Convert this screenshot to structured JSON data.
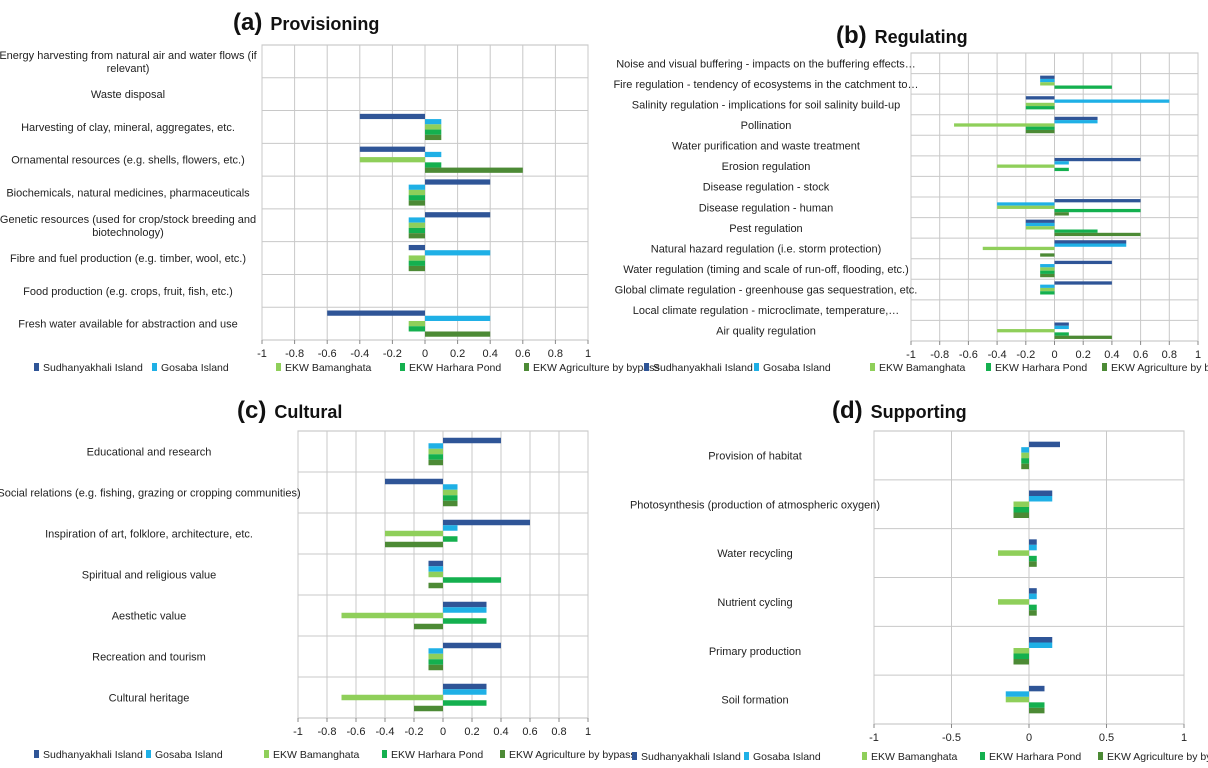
{
  "chart_data": [
    {
      "type": "bar",
      "orientation": "horizontal",
      "panel": "(a)",
      "title": "Provisioning",
      "categories": [
        "Energy harvesting from natural air and water flows (if relevant)",
        "Waste disposal",
        "Harvesting of clay, mineral, aggregates, etc.",
        "Ornamental resources (e.g. shells, flowers, etc.)",
        "Biochemicals, natural medicines, pharmaceuticals",
        "Genetic resources (used for crop/stock breeding and biotechnology)",
        "Fibre and fuel production (e.g. timber, wool, etc.)",
        "Food production (e.g. crops, fruit, fish, etc.)",
        "Fresh water available for abstraction and use"
      ],
      "series": [
        {
          "name": "Sudhanyakhali Island",
          "values": [
            0,
            0,
            -0.4,
            -0.4,
            0.4,
            0.4,
            -0.1,
            0,
            -0.6
          ]
        },
        {
          "name": "Gosaba Island",
          "values": [
            0,
            0,
            0.1,
            0.1,
            -0.1,
            -0.1,
            0.4,
            0,
            0.4
          ]
        },
        {
          "name": "EKW Bamanghata",
          "values": [
            0,
            0,
            0.1,
            -0.4,
            -0.1,
            -0.1,
            -0.1,
            0,
            -0.1
          ]
        },
        {
          "name": "EKW Harhara Pond",
          "values": [
            0,
            0,
            0.1,
            0.1,
            -0.1,
            -0.1,
            -0.1,
            0,
            -0.1
          ]
        },
        {
          "name": "EKW Agriculture by bypass",
          "values": [
            0,
            0,
            0.1,
            0.6,
            -0.1,
            -0.1,
            -0.1,
            0,
            0.4
          ]
        }
      ],
      "xlim": [
        -1,
        1
      ],
      "xticks": [
        "-1",
        "-0.8",
        "-0.6",
        "-0.4",
        "-0.2",
        "0",
        "0.2",
        "0.4",
        "0.6",
        "0.8",
        "1"
      ],
      "grid": true,
      "legend": "bottom"
    },
    {
      "type": "bar",
      "orientation": "horizontal",
      "panel": "(b)",
      "title": "Regulating",
      "categories": [
        "Noise and visual buffering - impacts on the buffering effects…",
        "Fire regulation - tendency of ecosystems in the catchment to…",
        "Salinity regulation - implications for soil salinity build-up",
        "Pollination",
        "Water purification and waste treatment",
        "Erosion regulation",
        "Disease regulation - stock",
        "Disease regulation - human",
        "Pest regulation",
        "Natural hazard regulation (i.e. storm protection)",
        "Water regulation (timing and scale of run-off, flooding, etc.)",
        "Global climate regulation - greenhouse gas sequestration, etc.",
        "Local climate regulation - microclimate, temperature,…",
        "Air quality regulation"
      ],
      "series": [
        {
          "name": "Sudhanyakhali Island",
          "values": [
            0,
            -0.1,
            -0.2,
            0.3,
            0,
            0.6,
            0,
            0.6,
            -0.2,
            0.5,
            0.4,
            0.4,
            0,
            0.1
          ]
        },
        {
          "name": "Gosaba Island",
          "values": [
            0,
            -0.1,
            0.8,
            0.3,
            0,
            0.1,
            0,
            -0.4,
            -0.2,
            0.5,
            -0.1,
            -0.1,
            0,
            0.1
          ]
        },
        {
          "name": "EKW Bamanghata",
          "values": [
            0,
            -0.1,
            -0.2,
            -0.7,
            0,
            -0.4,
            0,
            -0.4,
            -0.2,
            -0.5,
            -0.1,
            -0.1,
            0,
            -0.4
          ]
        },
        {
          "name": "EKW Harhara Pond",
          "values": [
            0,
            0.4,
            -0.2,
            -0.2,
            0,
            0.1,
            0,
            0.6,
            0.3,
            0,
            -0.1,
            -0.1,
            0,
            0.1
          ]
        },
        {
          "name": "EKW Agriculture by bypass",
          "values": [
            0,
            0,
            0,
            -0.2,
            0,
            0,
            0,
            0.1,
            0.6,
            -0.1,
            -0.1,
            0,
            0,
            0.4
          ]
        }
      ],
      "xlim": [
        -1,
        1
      ],
      "xticks": [
        "-1",
        "-0.8",
        "-0.6",
        "-0.4",
        "-0.2",
        "0",
        "0.2",
        "0.4",
        "0.6",
        "0.8",
        "1"
      ],
      "grid": true,
      "legend": "bottom"
    },
    {
      "type": "bar",
      "orientation": "horizontal",
      "panel": "(c)",
      "title": "Cultural",
      "categories": [
        "Educational and research",
        "Social relations (e.g. fishing, grazing or cropping communities)",
        "Inspiration of art, folklore, architecture, etc.",
        "Spiritual and religious value",
        "Aesthetic value",
        "Recreation and tourism",
        "Cultural heritage"
      ],
      "series": [
        {
          "name": "Sudhanyakhali Island",
          "values": [
            0.4,
            -0.4,
            0.6,
            -0.1,
            0.3,
            0.4,
            0.3
          ]
        },
        {
          "name": "Gosaba Island",
          "values": [
            -0.1,
            0.1,
            0.1,
            -0.1,
            0.3,
            -0.1,
            0.3
          ]
        },
        {
          "name": "EKW Bamanghata",
          "values": [
            -0.1,
            0.1,
            -0.4,
            -0.1,
            -0.7,
            -0.1,
            -0.7
          ]
        },
        {
          "name": "EKW Harhara Pond",
          "values": [
            -0.1,
            0.1,
            0.1,
            0.4,
            0.3,
            -0.1,
            0.3
          ]
        },
        {
          "name": "EKW Agriculture by bypass",
          "values": [
            -0.1,
            0.1,
            -0.4,
            -0.1,
            -0.2,
            -0.1,
            -0.2
          ]
        }
      ],
      "xlim": [
        -1,
        1
      ],
      "xticks": [
        "-1",
        "-0.8",
        "-0.6",
        "-0.4",
        "-0.2",
        "0",
        "0.2",
        "0.4",
        "0.6",
        "0.8",
        "1"
      ],
      "grid": true,
      "legend": "bottom"
    },
    {
      "type": "bar",
      "orientation": "horizontal",
      "panel": "(d)",
      "title": "Supporting",
      "categories": [
        "Provision of habitat",
        "Photosynthesis (production of atmospheric oxygen)",
        "Water recycling",
        "Nutrient cycling",
        "Primary production",
        "Soil formation"
      ],
      "series": [
        {
          "name": "Sudhanyakhali Island",
          "values": [
            0.2,
            0.15,
            0.05,
            0.05,
            0.15,
            0.1
          ]
        },
        {
          "name": "Gosaba Island",
          "values": [
            -0.05,
            0.15,
            0.05,
            0.05,
            0.15,
            -0.15
          ]
        },
        {
          "name": "EKW Bamanghata",
          "values": [
            -0.05,
            -0.1,
            -0.2,
            -0.2,
            -0.1,
            -0.15
          ]
        },
        {
          "name": "EKW Harhara Pond",
          "values": [
            -0.05,
            -0.1,
            0.05,
            0.05,
            -0.1,
            0.1
          ]
        },
        {
          "name": "EKW Agriculture by bypass",
          "values": [
            -0.05,
            -0.1,
            0.05,
            0.05,
            -0.1,
            0.1
          ]
        }
      ],
      "xlim": [
        -1,
        1
      ],
      "xticks": [
        "-1",
        "-0.5",
        "0",
        "0.5",
        "1"
      ],
      "grid": true,
      "legend": "bottom"
    }
  ],
  "series_colors": [
    "#2f5597",
    "#1fb0e6",
    "#8fcf5a",
    "#14b04f",
    "#4c8a35"
  ]
}
